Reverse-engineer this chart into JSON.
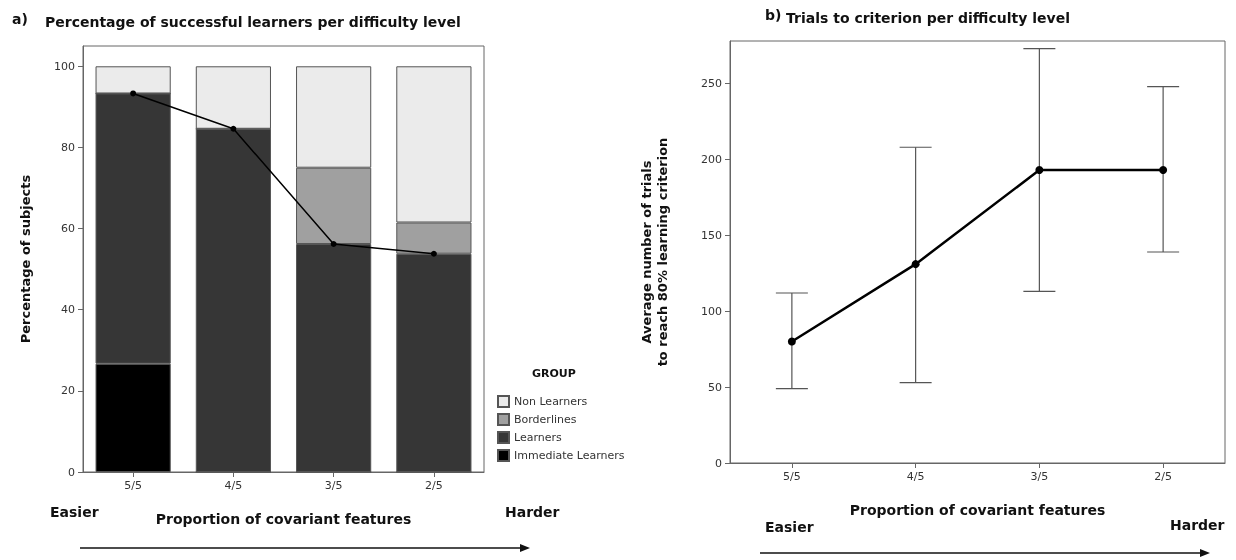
{
  "chart_data": [
    {
      "type": "bar",
      "title": "Percentage of successful learners per difficulty level",
      "xlabel": "Proportion of covariant features",
      "ylabel": "Percentage of subjects",
      "legend_title": "GROUP",
      "annotations": [
        "a)",
        "Easier",
        "Harder"
      ],
      "categories": [
        "5/5",
        "4/5",
        "3/5",
        "2/5"
      ],
      "stacked": true,
      "series": [
        {
          "name": "Immediate Learners",
          "color": "#000000",
          "values": [
            26.7,
            0,
            0,
            0
          ]
        },
        {
          "name": "Learners",
          "color": "#363636",
          "values": [
            66.6,
            84.6,
            56.2,
            53.8
          ]
        },
        {
          "name": "Borderlines",
          "color": "#a0a0a0",
          "values": [
            0,
            0,
            18.8,
            7.7
          ]
        },
        {
          "name": "Non Learners",
          "color": "#ebebeb",
          "values": [
            6.7,
            15.4,
            25,
            38.5
          ]
        },
        {
          "type": "line",
          "color": "#000000",
          "values": [
            93.3,
            84.6,
            56.2,
            53.8
          ]
        }
      ],
      "ylim": [
        0,
        105
      ],
      "yticks": [
        0,
        20,
        40,
        60,
        80,
        100
      ],
      "grid": false,
      "legend": "bottom right",
      "marker": "circle"
    },
    {
      "type": "line",
      "title": "Trials to criterion per difficulty level",
      "xlabel": "Proportion of covariant features",
      "ylabel": "Average number of trials\nto reach 80% learning criterion",
      "annotations": [
        "b)",
        "Easier",
        "Harder"
      ],
      "categories": [
        "5/5",
        "4/5",
        "3/5",
        "2/5"
      ],
      "series": [
        {
          "color": "#000000",
          "values": [
            80,
            131,
            193,
            193
          ],
          "errors": [
            [
              49,
              112
            ],
            [
              53,
              208
            ],
            [
              113,
              273
            ],
            [
              139,
              248
            ]
          ]
        }
      ],
      "ylim": [
        0,
        278
      ],
      "yticks": [
        0,
        50,
        100,
        150,
        200,
        250
      ],
      "grid": false,
      "legend": false,
      "marker": "circle"
    }
  ]
}
